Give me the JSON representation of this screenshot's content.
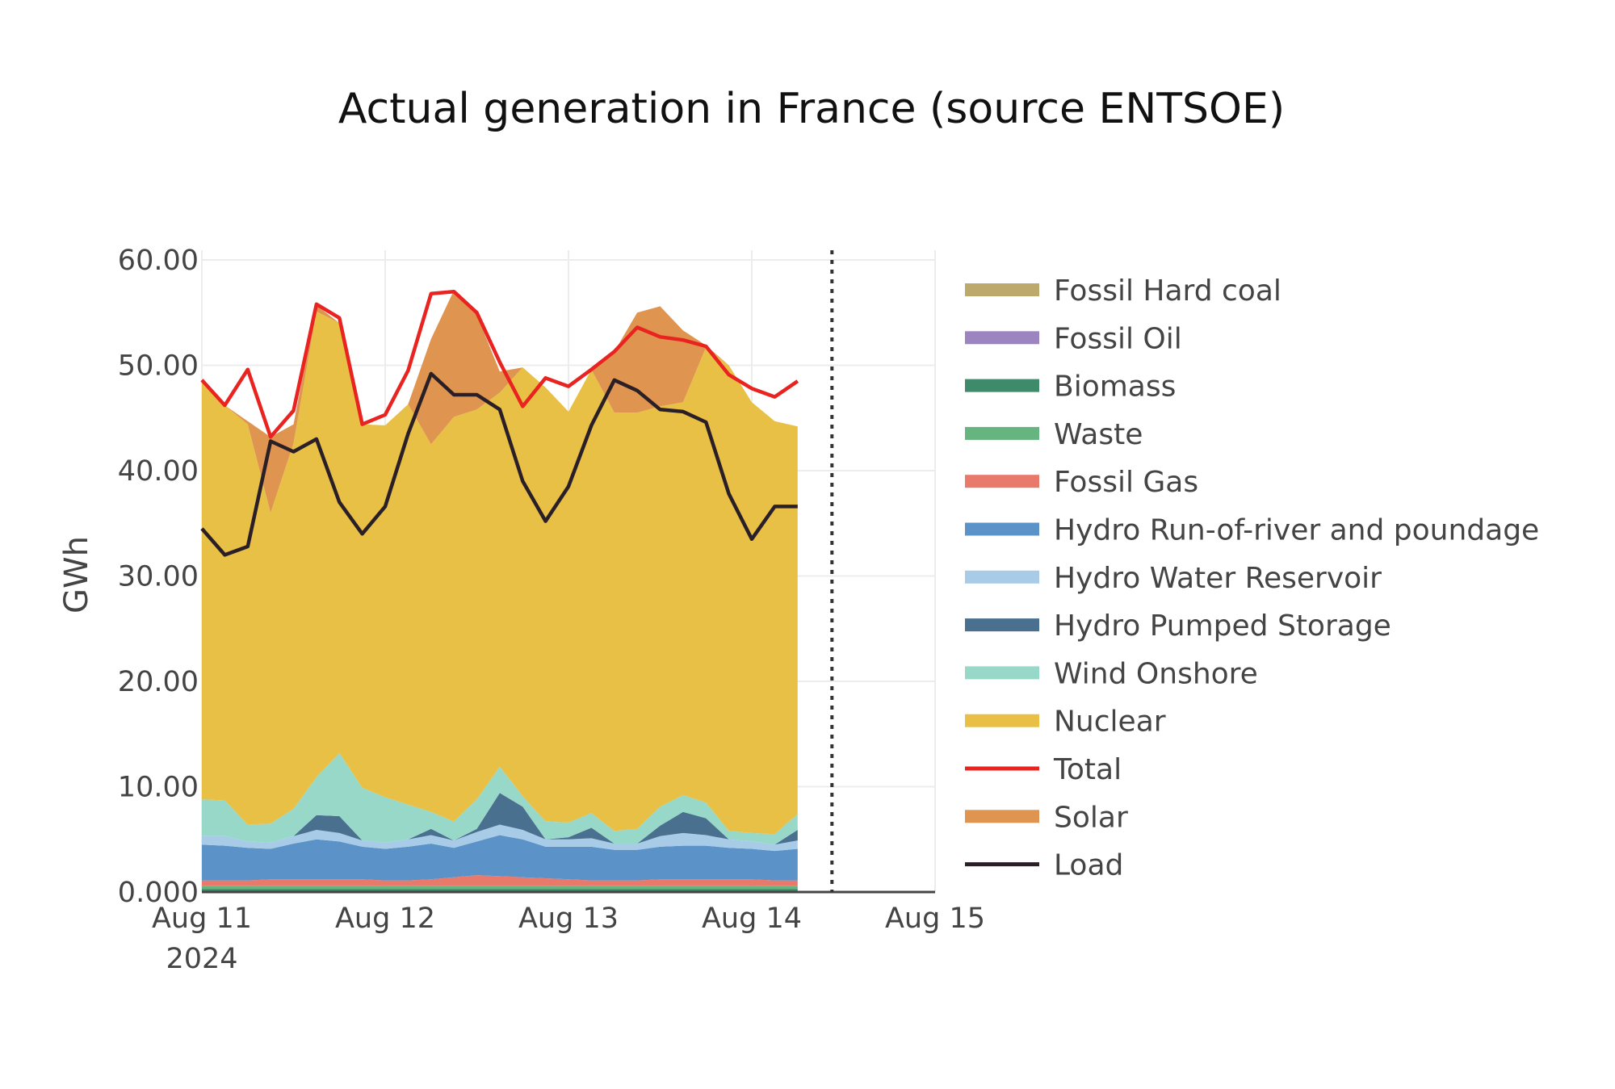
{
  "chart_data": {
    "type": "area",
    "title": "Actual generation in France (source ENTSOE)",
    "ylabel": "GWh",
    "xlabel": "",
    "ylim": [
      0,
      60
    ],
    "xlim": [
      "2024-08-11 00:00",
      "2024-08-15 00:00"
    ],
    "x_ticks": [
      {
        "x": "2024-08-11",
        "label": "Aug 11",
        "sublabel": "2024"
      },
      {
        "x": "2024-08-12",
        "label": "Aug 12"
      },
      {
        "x": "2024-08-13",
        "label": "Aug 13"
      },
      {
        "x": "2024-08-14",
        "label": "Aug 14"
      },
      {
        "x": "2024-08-15",
        "label": "Aug 15"
      }
    ],
    "y_ticks": [
      {
        "y": 0,
        "label": "0.000"
      },
      {
        "y": 10,
        "label": "10.00"
      },
      {
        "y": 20,
        "label": "20.00"
      },
      {
        "y": 30,
        "label": "30.00"
      },
      {
        "y": 40,
        "label": "40.00"
      },
      {
        "y": 50,
        "label": "50.00"
      },
      {
        "y": 60,
        "label": "60.00"
      }
    ],
    "grid": true,
    "legend_position": "right",
    "marker_line": {
      "x": "2024-08-14 10:30",
      "style": "dotted"
    },
    "x": [
      "2024-08-11 00:00",
      "2024-08-11 03:00",
      "2024-08-11 06:00",
      "2024-08-11 09:00",
      "2024-08-11 12:00",
      "2024-08-11 15:00",
      "2024-08-11 18:00",
      "2024-08-11 21:00",
      "2024-08-12 00:00",
      "2024-08-12 03:00",
      "2024-08-12 06:00",
      "2024-08-12 09:00",
      "2024-08-12 12:00",
      "2024-08-12 15:00",
      "2024-08-12 18:00",
      "2024-08-12 21:00",
      "2024-08-13 00:00",
      "2024-08-13 03:00",
      "2024-08-13 06:00",
      "2024-08-13 09:00",
      "2024-08-13 12:00",
      "2024-08-13 15:00",
      "2024-08-13 18:00",
      "2024-08-13 21:00",
      "2024-08-14 00:00",
      "2024-08-14 03:00",
      "2024-08-14 06:00"
    ],
    "stacked_series": [
      {
        "name": "Fossil Hard coal",
        "color": "#bca96b",
        "values": [
          0,
          0,
          0,
          0,
          0,
          0,
          0,
          0,
          0,
          0,
          0,
          0,
          0,
          0,
          0,
          0,
          0,
          0,
          0,
          0,
          0,
          0,
          0,
          0,
          0,
          0,
          0
        ]
      },
      {
        "name": "Fossil Oil",
        "color": "#9b84c0",
        "values": [
          0,
          0,
          0,
          0,
          0,
          0,
          0,
          0,
          0,
          0,
          0,
          0,
          0,
          0,
          0,
          0,
          0,
          0,
          0,
          0,
          0,
          0,
          0,
          0,
          0,
          0,
          0
        ]
      },
      {
        "name": "Biomass",
        "color": "#3f8a6b",
        "values": [
          0.3,
          0.3,
          0.3,
          0.3,
          0.3,
          0.3,
          0.3,
          0.3,
          0.3,
          0.3,
          0.3,
          0.3,
          0.3,
          0.3,
          0.3,
          0.3,
          0.3,
          0.3,
          0.3,
          0.3,
          0.3,
          0.3,
          0.3,
          0.3,
          0.3,
          0.3,
          0.3
        ]
      },
      {
        "name": "Waste",
        "color": "#66b580",
        "values": [
          0.3,
          0.3,
          0.3,
          0.3,
          0.3,
          0.3,
          0.3,
          0.3,
          0.3,
          0.3,
          0.3,
          0.3,
          0.3,
          0.3,
          0.3,
          0.3,
          0.3,
          0.3,
          0.3,
          0.3,
          0.3,
          0.3,
          0.3,
          0.3,
          0.3,
          0.3,
          0.3
        ]
      },
      {
        "name": "Fossil Gas",
        "color": "#e8796b",
        "values": [
          0.5,
          0.5,
          0.5,
          0.6,
          0.6,
          0.6,
          0.6,
          0.6,
          0.5,
          0.5,
          0.6,
          0.8,
          1.0,
          0.9,
          0.8,
          0.7,
          0.6,
          0.5,
          0.5,
          0.5,
          0.6,
          0.6,
          0.6,
          0.6,
          0.6,
          0.5,
          0.5
        ]
      },
      {
        "name": "Hydro Run-of-river and poundage",
        "color": "#5b93c9",
        "values": [
          3.4,
          3.3,
          3.1,
          2.9,
          3.4,
          3.8,
          3.6,
          3.1,
          3.0,
          3.2,
          3.4,
          2.8,
          3.2,
          3.9,
          3.6,
          3.0,
          3.1,
          3.2,
          2.9,
          2.9,
          3.1,
          3.2,
          3.2,
          3.0,
          2.9,
          2.8,
          3.0
        ]
      },
      {
        "name": "Hydro Water Reservoir",
        "color": "#a8cbe8",
        "values": [
          0.8,
          0.9,
          0.6,
          0.6,
          0.7,
          0.9,
          0.8,
          0.6,
          0.6,
          0.7,
          0.8,
          0.7,
          0.9,
          1.0,
          0.9,
          0.7,
          0.7,
          0.8,
          0.6,
          0.6,
          1.0,
          1.2,
          1.0,
          0.8,
          0.7,
          0.6,
          0.8
        ]
      },
      {
        "name": "Hydro Pumped Storage",
        "color": "#4a7090",
        "values": [
          0,
          0,
          0,
          0,
          0,
          1.4,
          1.6,
          0,
          0,
          0,
          0.6,
          0,
          0.3,
          3.0,
          2.2,
          0,
          0.2,
          1.0,
          0,
          0,
          1.0,
          2.0,
          1.6,
          0,
          0,
          0,
          1.0
        ]
      },
      {
        "name": "Wind Onshore",
        "color": "#98d8c8",
        "values": [
          3.5,
          3.4,
          1.6,
          1.8,
          2.6,
          3.6,
          6.0,
          5.0,
          4.3,
          3.3,
          1.6,
          1.8,
          2.8,
          2.5,
          1.0,
          1.7,
          1.4,
          1.4,
          1.2,
          1.4,
          1.8,
          1.6,
          1.5,
          0.8,
          0.8,
          1.0,
          1.5
        ]
      },
      {
        "name": "Nuclear",
        "color": "#e9c046",
        "values": [
          39.8,
          37.5,
          38.0,
          29.5,
          34.7,
          44.2,
          40.8,
          34.5,
          35.3,
          38.0,
          34.9,
          38.4,
          37.0,
          35.5,
          40.7,
          41.2,
          39.0,
          42.1,
          39.7,
          39.5,
          38.0,
          37.3,
          43.2,
          44.2,
          40.9,
          39.2,
          36.8
        ]
      },
      {
        "name": "Solar",
        "color": "#df9550",
        "values": [
          0,
          0,
          0.3,
          7.2,
          1.8,
          0.6,
          0,
          0,
          0,
          0,
          10.0,
          12.0,
          9.0,
          2.0,
          0,
          0,
          0,
          0,
          5.8,
          9.5,
          9.5,
          6.8,
          0.2,
          0,
          0,
          0,
          0
        ]
      }
    ],
    "line_series": [
      {
        "name": "Total",
        "color": "#e9231f",
        "values": [
          48.6,
          46.2,
          49.6,
          43.2,
          45.7,
          55.8,
          54.5,
          44.4,
          45.3,
          49.5,
          56.8,
          57.0,
          55.0,
          50.3,
          46.1,
          48.8,
          48.0,
          49.6,
          51.3,
          53.6,
          52.7,
          52.4,
          51.8,
          49.1,
          47.8,
          47.0,
          48.5
        ]
      },
      {
        "name": "Load",
        "color": "#2a1f27",
        "values": [
          34.5,
          32.0,
          32.8,
          42.8,
          41.8,
          43.0,
          37.0,
          34.0,
          36.6,
          43.5,
          49.2,
          47.2,
          47.2,
          45.8,
          39.0,
          35.2,
          38.5,
          44.3,
          48.6,
          47.6,
          45.8,
          45.6,
          44.6,
          37.8,
          33.5,
          36.6,
          36.6
        ]
      }
    ],
    "legend": [
      {
        "name": "Fossil Hard coal",
        "color": "#bca96b",
        "kind": "area"
      },
      {
        "name": "Fossil Oil",
        "color": "#9b84c0",
        "kind": "area"
      },
      {
        "name": "Biomass",
        "color": "#3f8a6b",
        "kind": "area"
      },
      {
        "name": "Waste",
        "color": "#66b580",
        "kind": "area"
      },
      {
        "name": "Fossil Gas",
        "color": "#e8796b",
        "kind": "area"
      },
      {
        "name": "Hydro Run-of-river and poundage",
        "color": "#5b93c9",
        "kind": "area"
      },
      {
        "name": "Hydro Water Reservoir",
        "color": "#a8cbe8",
        "kind": "area"
      },
      {
        "name": "Hydro Pumped Storage",
        "color": "#4a7090",
        "kind": "area"
      },
      {
        "name": "Wind Onshore",
        "color": "#98d8c8",
        "kind": "area"
      },
      {
        "name": "Nuclear",
        "color": "#e9c046",
        "kind": "area"
      },
      {
        "name": "Total",
        "color": "#e9231f",
        "kind": "line"
      },
      {
        "name": "Solar",
        "color": "#df9550",
        "kind": "area"
      },
      {
        "name": "Load",
        "color": "#2a1f27",
        "kind": "line"
      }
    ]
  }
}
